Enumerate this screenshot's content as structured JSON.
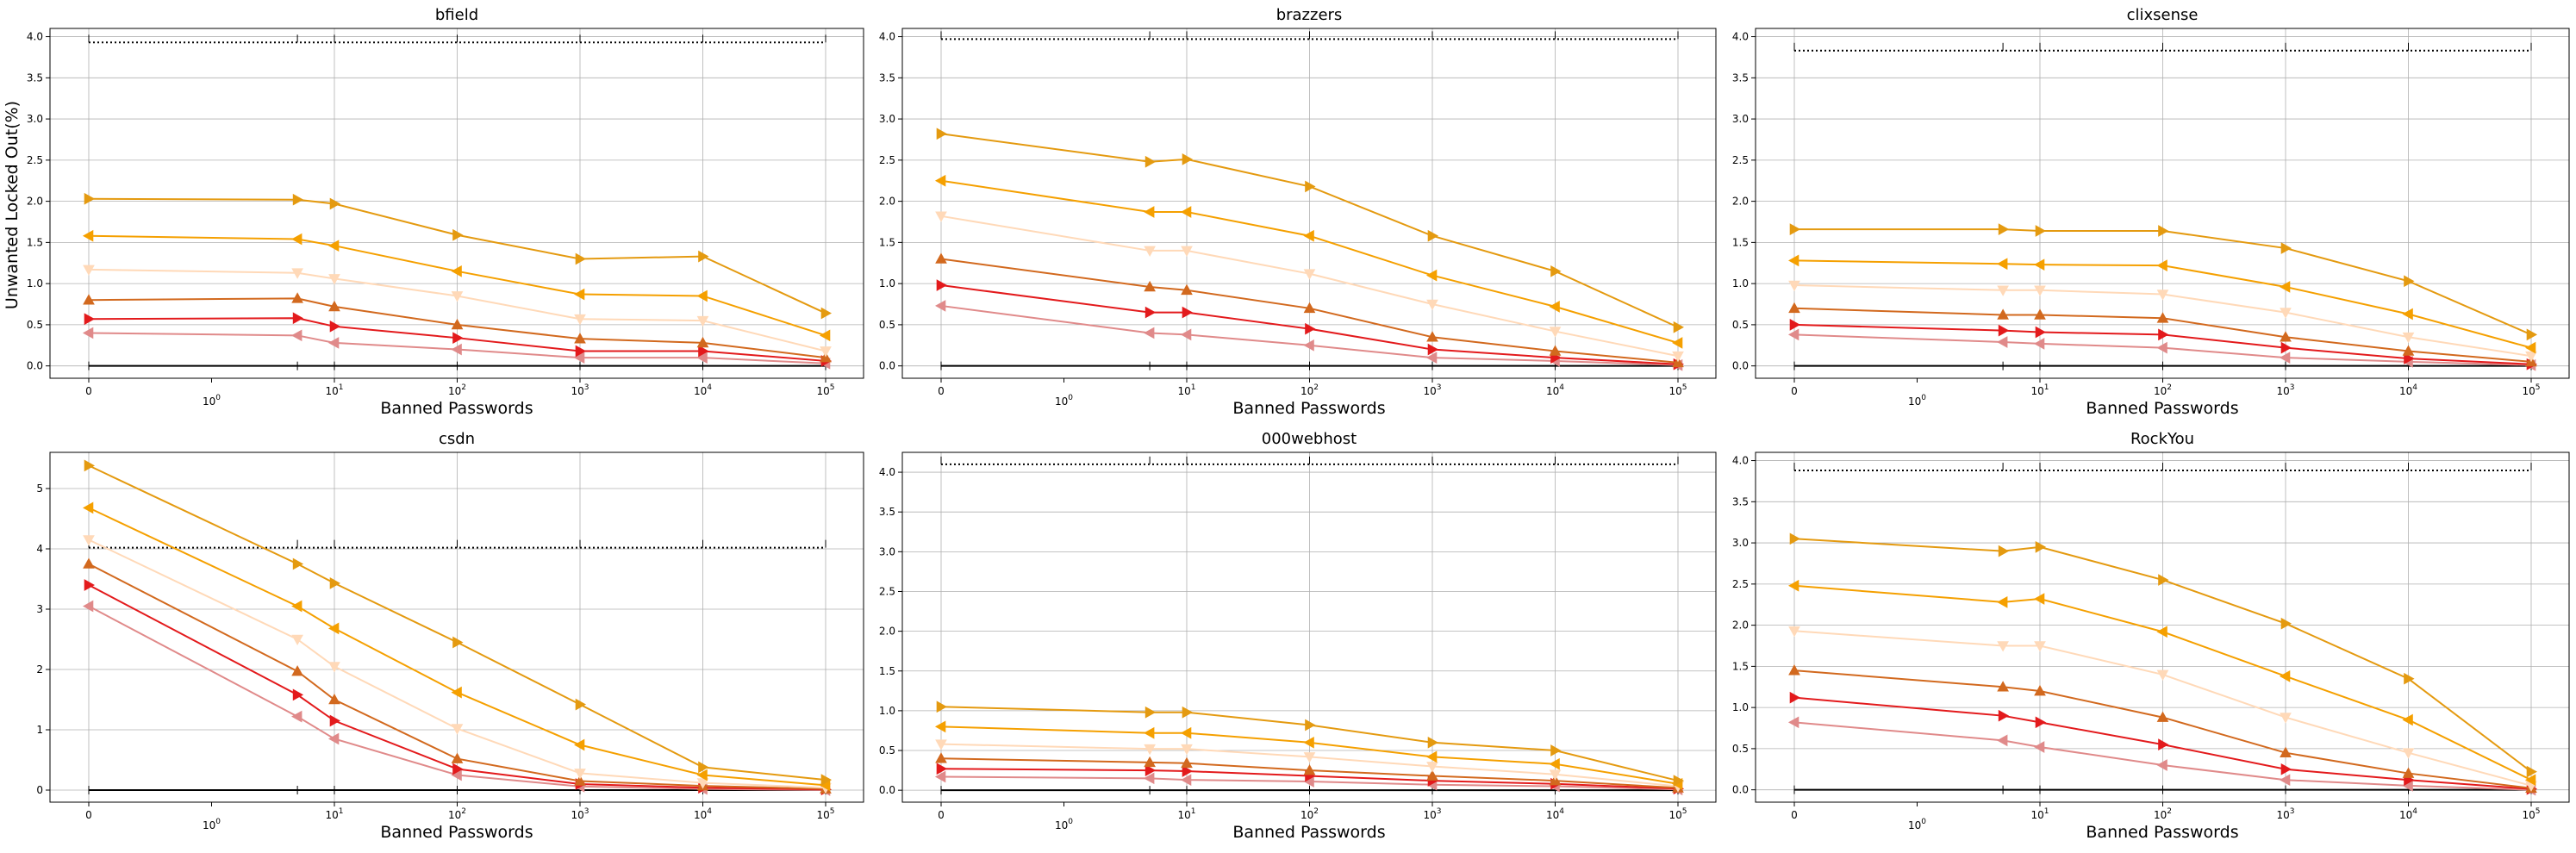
{
  "figure": {
    "ylabel": "Unwanted Locked Out(%)",
    "xlabel": "Banned Passwords"
  },
  "series_styles": [
    {
      "color": "#e08a8a",
      "marker": "left-triangle"
    },
    {
      "color": "#e31a1c",
      "marker": "right-triangle"
    },
    {
      "color": "#d2691e",
      "marker": "up-triangle"
    },
    {
      "color": "#ffd9b8",
      "marker": "down-triangle"
    },
    {
      "color": "#f5a000",
      "marker": "left-triangle"
    },
    {
      "color": "#e49a10",
      "marker": "right-triangle"
    }
  ],
  "chart_data": [
    {
      "type": "line",
      "title": "bfield",
      "xscale": "symlog",
      "x_tick_labels": [
        "0",
        "10^0",
        "10^1",
        "10^2",
        "10^3",
        "10^4",
        "10^5"
      ],
      "x": [
        0,
        5,
        10,
        100,
        1000,
        10000,
        100000
      ],
      "ylim": [
        -0.15,
        4.1
      ],
      "yticks": [
        0.0,
        0.5,
        1.0,
        1.5,
        2.0,
        2.5,
        3.0,
        3.5,
        4.0
      ],
      "ytick_labels": [
        "0.0",
        "0.5",
        "1.0",
        "1.5",
        "2.0",
        "2.5",
        "3.0",
        "3.5",
        "4.0"
      ],
      "ref_line": 3.93,
      "series": [
        {
          "values": [
            0.4,
            0.37,
            0.28,
            0.2,
            0.1,
            0.1,
            0.03
          ]
        },
        {
          "values": [
            0.57,
            0.58,
            0.48,
            0.34,
            0.18,
            0.18,
            0.06
          ]
        },
        {
          "values": [
            0.8,
            0.82,
            0.72,
            0.5,
            0.33,
            0.28,
            0.1
          ]
        },
        {
          "values": [
            1.17,
            1.13,
            1.06,
            0.85,
            0.57,
            0.55,
            0.18
          ]
        },
        {
          "values": [
            1.58,
            1.54,
            1.46,
            1.15,
            0.87,
            0.85,
            0.37
          ]
        },
        {
          "values": [
            2.03,
            2.02,
            1.97,
            1.59,
            1.3,
            1.33,
            0.64
          ]
        }
      ]
    },
    {
      "type": "line",
      "title": "brazzers",
      "xscale": "symlog",
      "x_tick_labels": [
        "0",
        "10^0",
        "10^1",
        "10^2",
        "10^3",
        "10^4",
        "10^5"
      ],
      "x": [
        0,
        5,
        10,
        100,
        1000,
        10000,
        100000
      ],
      "ylim": [
        -0.15,
        4.1
      ],
      "yticks": [
        0.0,
        0.5,
        1.0,
        1.5,
        2.0,
        2.5,
        3.0,
        3.5,
        4.0
      ],
      "ytick_labels": [
        "0.0",
        "0.5",
        "1.0",
        "1.5",
        "2.0",
        "2.5",
        "3.0",
        "3.5",
        "4.0"
      ],
      "ref_line": 3.97,
      "series": [
        {
          "values": [
            0.73,
            0.4,
            0.38,
            0.25,
            0.1,
            0.06,
            0.01
          ]
        },
        {
          "values": [
            0.98,
            0.65,
            0.65,
            0.45,
            0.2,
            0.1,
            0.02
          ]
        },
        {
          "values": [
            1.3,
            0.96,
            0.92,
            0.7,
            0.35,
            0.18,
            0.04
          ]
        },
        {
          "values": [
            1.82,
            1.4,
            1.4,
            1.12,
            0.75,
            0.42,
            0.12
          ]
        },
        {
          "values": [
            2.25,
            1.87,
            1.87,
            1.58,
            1.1,
            0.72,
            0.28
          ]
        },
        {
          "values": [
            2.82,
            2.48,
            2.51,
            2.18,
            1.58,
            1.15,
            0.47
          ]
        }
      ]
    },
    {
      "type": "line",
      "title": "clixsense",
      "xscale": "symlog",
      "x_tick_labels": [
        "0",
        "10^0",
        "10^1",
        "10^2",
        "10^3",
        "10^4",
        "10^5"
      ],
      "x": [
        0,
        5,
        10,
        100,
        1000,
        10000,
        100000
      ],
      "ylim": [
        -0.15,
        4.1
      ],
      "yticks": [
        0.0,
        0.5,
        1.0,
        1.5,
        2.0,
        2.5,
        3.0,
        3.5,
        4.0
      ],
      "ytick_labels": [
        "0.0",
        "0.5",
        "1.0",
        "1.5",
        "2.0",
        "2.5",
        "3.0",
        "3.5",
        "4.0"
      ],
      "ref_line": 3.83,
      "series": [
        {
          "values": [
            0.38,
            0.29,
            0.27,
            0.22,
            0.1,
            0.05,
            0.01
          ]
        },
        {
          "values": [
            0.5,
            0.43,
            0.41,
            0.38,
            0.22,
            0.09,
            0.02
          ]
        },
        {
          "values": [
            0.7,
            0.62,
            0.62,
            0.58,
            0.35,
            0.18,
            0.05
          ]
        },
        {
          "values": [
            0.98,
            0.92,
            0.92,
            0.87,
            0.65,
            0.35,
            0.12
          ]
        },
        {
          "values": [
            1.28,
            1.24,
            1.23,
            1.22,
            0.96,
            0.63,
            0.22
          ]
        },
        {
          "values": [
            1.66,
            1.66,
            1.64,
            1.64,
            1.43,
            1.03,
            0.38
          ]
        }
      ]
    },
    {
      "type": "line",
      "title": "csdn",
      "xscale": "symlog",
      "x_tick_labels": [
        "0",
        "10^0",
        "10^1",
        "10^2",
        "10^3",
        "10^4",
        "10^5"
      ],
      "x": [
        0,
        5,
        10,
        100,
        1000,
        10000,
        100000
      ],
      "ylim": [
        -0.2,
        5.6
      ],
      "yticks": [
        0,
        1,
        2,
        3,
        4,
        5
      ],
      "ytick_labels": [
        "0",
        "1",
        "2",
        "3",
        "4",
        "5"
      ],
      "ref_line": 4.02,
      "series": [
        {
          "values": [
            3.05,
            1.22,
            0.85,
            0.25,
            0.06,
            0.02,
            0.0
          ]
        },
        {
          "values": [
            3.4,
            1.58,
            1.15,
            0.35,
            0.1,
            0.04,
            0.01
          ]
        },
        {
          "values": [
            3.75,
            1.97,
            1.5,
            0.52,
            0.15,
            0.07,
            0.02
          ]
        },
        {
          "values": [
            4.15,
            2.5,
            2.05,
            1.02,
            0.28,
            0.12,
            0.04
          ]
        },
        {
          "values": [
            4.68,
            3.05,
            2.68,
            1.62,
            0.75,
            0.25,
            0.08
          ]
        },
        {
          "values": [
            5.38,
            3.75,
            3.43,
            2.45,
            1.42,
            0.38,
            0.17
          ]
        }
      ]
    },
    {
      "type": "line",
      "title": "000webhost",
      "xscale": "symlog",
      "x_tick_labels": [
        "0",
        "10^0",
        "10^1",
        "10^2",
        "10^3",
        "10^4",
        "10^5"
      ],
      "x": [
        0,
        5,
        10,
        100,
        1000,
        10000,
        100000
      ],
      "ylim": [
        -0.15,
        4.25
      ],
      "yticks": [
        0.0,
        0.5,
        1.0,
        1.5,
        2.0,
        2.5,
        3.0,
        3.5,
        4.0
      ],
      "ytick_labels": [
        "0.0",
        "0.5",
        "1.0",
        "1.5",
        "2.0",
        "2.5",
        "3.0",
        "3.5",
        "4.0"
      ],
      "ref_line": 4.1,
      "series": [
        {
          "values": [
            0.17,
            0.15,
            0.13,
            0.11,
            0.07,
            0.05,
            0.01
          ]
        },
        {
          "values": [
            0.27,
            0.25,
            0.24,
            0.18,
            0.12,
            0.08,
            0.02
          ]
        },
        {
          "values": [
            0.4,
            0.35,
            0.34,
            0.25,
            0.18,
            0.12,
            0.03
          ]
        },
        {
          "values": [
            0.58,
            0.52,
            0.52,
            0.42,
            0.3,
            0.2,
            0.05
          ]
        },
        {
          "values": [
            0.8,
            0.72,
            0.72,
            0.6,
            0.42,
            0.33,
            0.08
          ]
        },
        {
          "values": [
            1.05,
            0.98,
            0.98,
            0.82,
            0.6,
            0.5,
            0.12
          ]
        }
      ]
    },
    {
      "type": "line",
      "title": "RockYou",
      "xscale": "symlog",
      "x_tick_labels": [
        "0",
        "10^0",
        "10^1",
        "10^2",
        "10^3",
        "10^4",
        "10^5"
      ],
      "x": [
        0,
        5,
        10,
        100,
        1000,
        10000,
        100000
      ],
      "ylim": [
        -0.15,
        4.1
      ],
      "yticks": [
        0.0,
        0.5,
        1.0,
        1.5,
        2.0,
        2.5,
        3.0,
        3.5,
        4.0
      ],
      "ytick_labels": [
        "0.0",
        "0.5",
        "1.0",
        "1.5",
        "2.0",
        "2.5",
        "3.0",
        "3.5",
        "4.0"
      ],
      "ref_line": 3.88,
      "series": [
        {
          "values": [
            0.82,
            0.6,
            0.52,
            0.3,
            0.12,
            0.05,
            0.0
          ]
        },
        {
          "values": [
            1.12,
            0.9,
            0.82,
            0.55,
            0.25,
            0.12,
            0.01
          ]
        },
        {
          "values": [
            1.45,
            1.25,
            1.2,
            0.88,
            0.45,
            0.2,
            0.02
          ]
        },
        {
          "values": [
            1.93,
            1.75,
            1.75,
            1.4,
            0.88,
            0.45,
            0.05
          ]
        },
        {
          "values": [
            2.48,
            2.28,
            2.32,
            1.92,
            1.38,
            0.85,
            0.12
          ]
        },
        {
          "values": [
            3.05,
            2.9,
            2.95,
            2.55,
            2.02,
            1.35,
            0.22
          ]
        }
      ]
    }
  ]
}
